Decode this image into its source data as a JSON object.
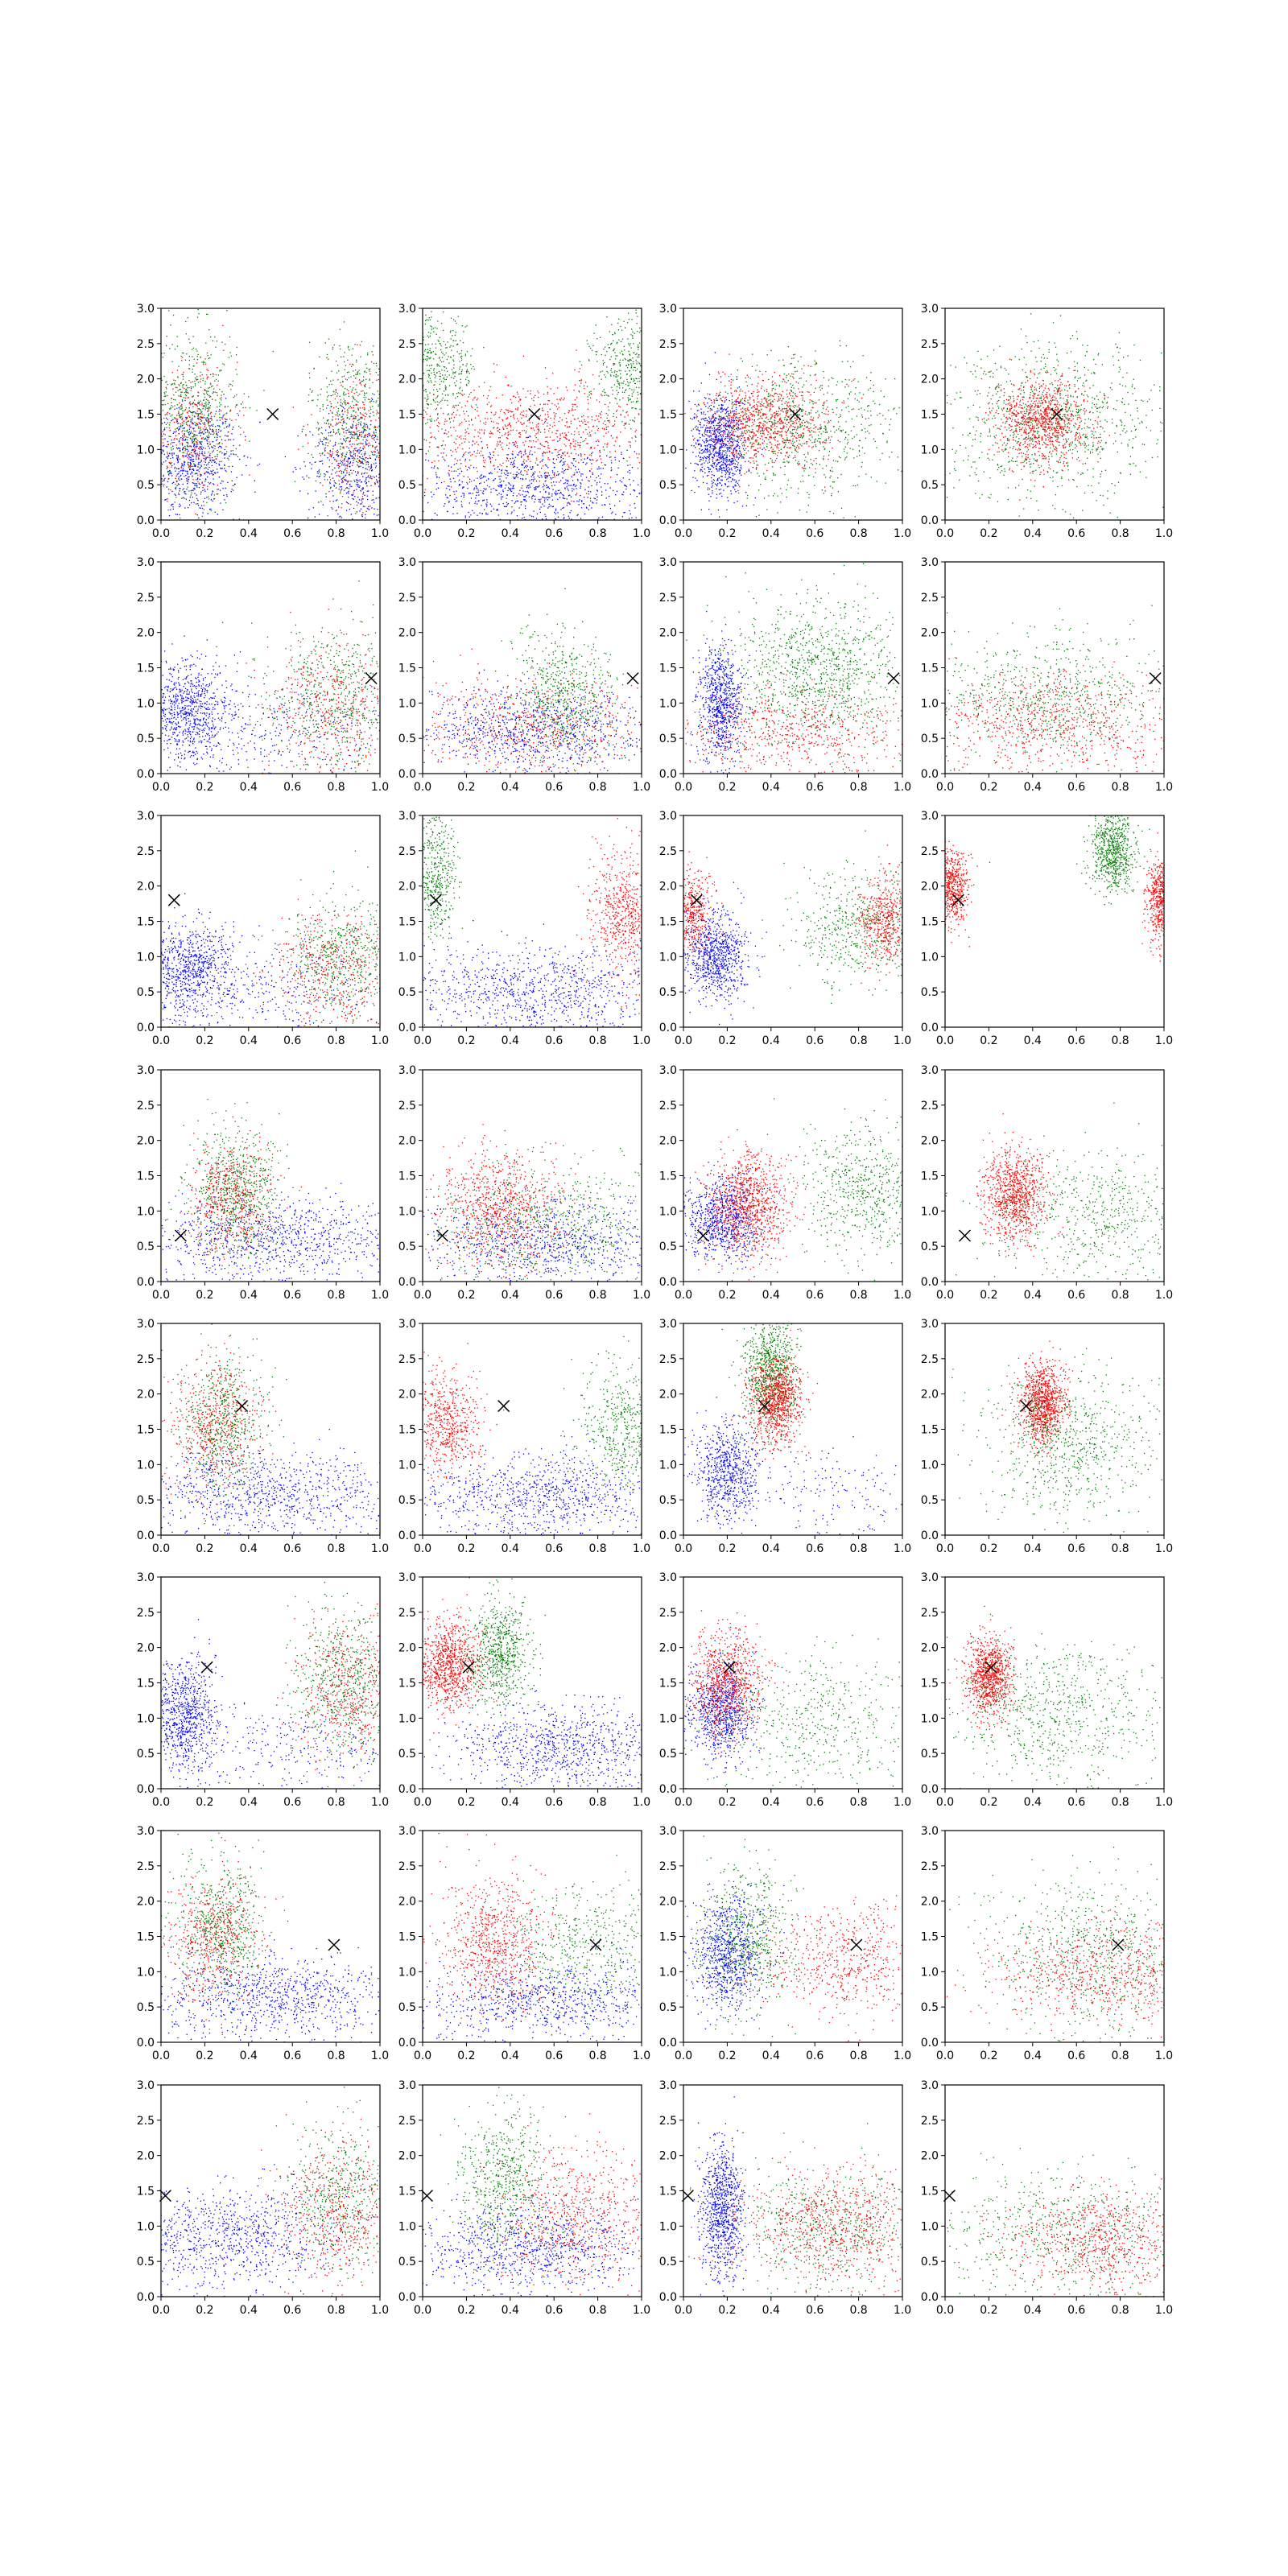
{
  "figure": {
    "rows": 8,
    "cols": 4,
    "colors": {
      "blue": "#0000ff",
      "red": "#ff0000",
      "green": "#008000",
      "marker": "#000000",
      "axes": "#000000"
    }
  },
  "chart_data": {
    "type": "scatter",
    "grid": false,
    "legend": "none",
    "xlim": [
      0,
      1
    ],
    "ylim": [
      0,
      3
    ],
    "x_ticks": [
      "0.0",
      "0.2",
      "0.4",
      "0.6",
      "0.8",
      "1.0"
    ],
    "y_ticks": [
      "0.0",
      "0.5",
      "1.0",
      "1.5",
      "2.0",
      "2.5",
      "3.0"
    ],
    "row_markers": [
      {
        "x": 0.51,
        "y": 1.5
      },
      {
        "x": 0.96,
        "y": 1.35
      },
      {
        "x": 0.06,
        "y": 1.8
      },
      {
        "x": 0.09,
        "y": 0.65
      },
      {
        "x": 0.37,
        "y": 1.83
      },
      {
        "x": 0.21,
        "y": 1.72
      },
      {
        "x": 0.79,
        "y": 1.38
      },
      {
        "x": 0.02,
        "y": 1.43
      }
    ],
    "panels": [
      {
        "clusters": [
          {
            "color": "blue",
            "n": 700,
            "cx": 0.15,
            "cy": 0.85,
            "sx": 0.1,
            "sy": 0.4
          },
          {
            "color": "blue",
            "n": 500,
            "cx": 0.88,
            "cy": 0.8,
            "sx": 0.1,
            "sy": 0.4
          },
          {
            "color": "green",
            "n": 550,
            "cx": 0.15,
            "cy": 1.6,
            "sx": 0.1,
            "sy": 0.55
          },
          {
            "color": "green",
            "n": 450,
            "cx": 0.88,
            "cy": 1.5,
            "sx": 0.1,
            "sy": 0.55
          },
          {
            "color": "red",
            "n": 350,
            "cx": 0.15,
            "cy": 1.3,
            "sx": 0.1,
            "sy": 0.5
          },
          {
            "color": "red",
            "n": 300,
            "cx": 0.88,
            "cy": 1.2,
            "sx": 0.1,
            "sy": 0.5
          }
        ]
      },
      {
        "clusters": [
          {
            "color": "green",
            "n": 500,
            "cx": 0.05,
            "cy": 2.1,
            "sx": 0.1,
            "sy": 0.4
          },
          {
            "color": "green",
            "n": 500,
            "cx": 0.97,
            "cy": 2.1,
            "sx": 0.1,
            "sy": 0.4
          },
          {
            "color": "red",
            "n": 900,
            "cx": 0.5,
            "cy": 1.25,
            "sx": 0.28,
            "sy": 0.35
          },
          {
            "color": "blue",
            "n": 900,
            "cx": 0.5,
            "cy": 0.5,
            "sx": 0.3,
            "sy": 0.3
          }
        ]
      },
      {
        "clusters": [
          {
            "color": "blue",
            "n": 900,
            "cx": 0.17,
            "cy": 1.05,
            "sx": 0.06,
            "sy": 0.35
          },
          {
            "color": "red",
            "n": 900,
            "cx": 0.38,
            "cy": 1.4,
            "sx": 0.14,
            "sy": 0.3
          },
          {
            "color": "green",
            "n": 700,
            "cx": 0.55,
            "cy": 1.3,
            "sx": 0.22,
            "sy": 0.5
          }
        ]
      },
      {
        "clusters": [
          {
            "color": "green",
            "n": 900,
            "cx": 0.5,
            "cy": 1.4,
            "sx": 0.25,
            "sy": 0.55
          },
          {
            "color": "red",
            "n": 900,
            "cx": 0.45,
            "cy": 1.4,
            "sx": 0.1,
            "sy": 0.3
          }
        ]
      },
      {
        "clusters": [
          {
            "color": "blue",
            "n": 800,
            "cx": 0.12,
            "cy": 0.9,
            "sx": 0.1,
            "sy": 0.35
          },
          {
            "color": "blue",
            "n": 300,
            "cx": 0.5,
            "cy": 0.6,
            "sx": 0.3,
            "sy": 0.3
          },
          {
            "color": "red",
            "n": 500,
            "cx": 0.78,
            "cy": 0.95,
            "sx": 0.15,
            "sy": 0.5
          },
          {
            "color": "green",
            "n": 500,
            "cx": 0.8,
            "cy": 1.1,
            "sx": 0.15,
            "sy": 0.5
          }
        ]
      },
      {
        "clusters": [
          {
            "color": "blue",
            "n": 900,
            "cx": 0.5,
            "cy": 0.6,
            "sx": 0.3,
            "sy": 0.3
          },
          {
            "color": "green",
            "n": 600,
            "cx": 0.65,
            "cy": 1.1,
            "sx": 0.12,
            "sy": 0.45
          },
          {
            "color": "red",
            "n": 600,
            "cx": 0.5,
            "cy": 0.7,
            "sx": 0.28,
            "sy": 0.35
          }
        ]
      },
      {
        "clusters": [
          {
            "color": "blue",
            "n": 800,
            "cx": 0.17,
            "cy": 1.0,
            "sx": 0.05,
            "sy": 0.4
          },
          {
            "color": "green",
            "n": 1000,
            "cx": 0.62,
            "cy": 1.45,
            "sx": 0.2,
            "sy": 0.5
          },
          {
            "color": "red",
            "n": 600,
            "cx": 0.5,
            "cy": 0.6,
            "sx": 0.28,
            "sy": 0.3
          }
        ]
      },
      {
        "clusters": [
          {
            "color": "green",
            "n": 700,
            "cx": 0.45,
            "cy": 1.1,
            "sx": 0.28,
            "sy": 0.45
          },
          {
            "color": "red",
            "n": 700,
            "cx": 0.5,
            "cy": 0.7,
            "sx": 0.28,
            "sy": 0.35
          }
        ]
      },
      {
        "clusters": [
          {
            "color": "blue",
            "n": 800,
            "cx": 0.12,
            "cy": 0.8,
            "sx": 0.1,
            "sy": 0.35
          },
          {
            "color": "blue",
            "n": 300,
            "cx": 0.5,
            "cy": 0.55,
            "sx": 0.3,
            "sy": 0.3
          },
          {
            "color": "green",
            "n": 500,
            "cx": 0.82,
            "cy": 1.0,
            "sx": 0.12,
            "sy": 0.4
          },
          {
            "color": "red",
            "n": 450,
            "cx": 0.78,
            "cy": 0.85,
            "sx": 0.14,
            "sy": 0.4
          }
        ]
      },
      {
        "clusters": [
          {
            "color": "green",
            "n": 450,
            "cx": 0.06,
            "cy": 2.2,
            "sx": 0.05,
            "sy": 0.45
          },
          {
            "color": "red",
            "n": 600,
            "cx": 0.92,
            "cy": 1.6,
            "sx": 0.08,
            "sy": 0.45
          },
          {
            "color": "blue",
            "n": 900,
            "cx": 0.5,
            "cy": 0.55,
            "sx": 0.3,
            "sy": 0.3
          }
        ]
      },
      {
        "clusters": [
          {
            "color": "red",
            "n": 500,
            "cx": 0.03,
            "cy": 1.6,
            "sx": 0.05,
            "sy": 0.3
          },
          {
            "color": "blue",
            "n": 800,
            "cx": 0.15,
            "cy": 1.0,
            "sx": 0.07,
            "sy": 0.3
          },
          {
            "color": "green",
            "n": 500,
            "cx": 0.8,
            "cy": 1.4,
            "sx": 0.15,
            "sy": 0.45
          },
          {
            "color": "red",
            "n": 500,
            "cx": 0.92,
            "cy": 1.5,
            "sx": 0.06,
            "sy": 0.3
          }
        ]
      },
      {
        "clusters": [
          {
            "color": "red",
            "n": 600,
            "cx": 0.03,
            "cy": 1.95,
            "sx": 0.04,
            "sy": 0.25
          },
          {
            "color": "green",
            "n": 700,
            "cx": 0.77,
            "cy": 2.5,
            "sx": 0.05,
            "sy": 0.3
          },
          {
            "color": "red",
            "n": 500,
            "cx": 0.98,
            "cy": 1.8,
            "sx": 0.03,
            "sy": 0.3
          }
        ]
      },
      {
        "clusters": [
          {
            "color": "blue",
            "n": 900,
            "cx": 0.5,
            "cy": 0.6,
            "sx": 0.32,
            "sy": 0.3
          },
          {
            "color": "green",
            "n": 700,
            "cx": 0.35,
            "cy": 1.3,
            "sx": 0.1,
            "sy": 0.45
          },
          {
            "color": "red",
            "n": 500,
            "cx": 0.32,
            "cy": 1.2,
            "sx": 0.1,
            "sy": 0.4
          }
        ]
      },
      {
        "clusters": [
          {
            "color": "blue",
            "n": 800,
            "cx": 0.55,
            "cy": 0.55,
            "sx": 0.3,
            "sy": 0.28
          },
          {
            "color": "red",
            "n": 800,
            "cx": 0.35,
            "cy": 1.05,
            "sx": 0.14,
            "sy": 0.4
          },
          {
            "color": "green",
            "n": 600,
            "cx": 0.6,
            "cy": 0.9,
            "sx": 0.28,
            "sy": 0.4
          }
        ]
      },
      {
        "clusters": [
          {
            "color": "blue",
            "n": 800,
            "cx": 0.18,
            "cy": 0.9,
            "sx": 0.09,
            "sy": 0.3
          },
          {
            "color": "red",
            "n": 900,
            "cx": 0.3,
            "cy": 1.1,
            "sx": 0.09,
            "sy": 0.35
          },
          {
            "color": "green",
            "n": 600,
            "cx": 0.82,
            "cy": 1.3,
            "sx": 0.15,
            "sy": 0.45
          }
        ]
      },
      {
        "clusters": [
          {
            "color": "red",
            "n": 900,
            "cx": 0.32,
            "cy": 1.2,
            "sx": 0.07,
            "sy": 0.3
          },
          {
            "color": "green",
            "n": 600,
            "cx": 0.7,
            "cy": 0.9,
            "sx": 0.25,
            "sy": 0.45
          }
        ]
      },
      {
        "clusters": [
          {
            "color": "blue",
            "n": 900,
            "cx": 0.5,
            "cy": 0.6,
            "sx": 0.32,
            "sy": 0.3
          },
          {
            "color": "green",
            "n": 600,
            "cx": 0.28,
            "cy": 1.6,
            "sx": 0.1,
            "sy": 0.5
          },
          {
            "color": "red",
            "n": 500,
            "cx": 0.25,
            "cy": 1.5,
            "sx": 0.1,
            "sy": 0.45
          }
        ]
      },
      {
        "clusters": [
          {
            "color": "blue",
            "n": 900,
            "cx": 0.55,
            "cy": 0.55,
            "sx": 0.3,
            "sy": 0.3
          },
          {
            "color": "red",
            "n": 600,
            "cx": 0.1,
            "cy": 1.6,
            "sx": 0.08,
            "sy": 0.35
          },
          {
            "color": "green",
            "n": 500,
            "cx": 0.92,
            "cy": 1.5,
            "sx": 0.1,
            "sy": 0.45
          }
        ]
      },
      {
        "clusters": [
          {
            "color": "blue",
            "n": 700,
            "cx": 0.2,
            "cy": 0.9,
            "sx": 0.07,
            "sy": 0.35
          },
          {
            "color": "green",
            "n": 800,
            "cx": 0.4,
            "cy": 2.3,
            "sx": 0.06,
            "sy": 0.4
          },
          {
            "color": "red",
            "n": 900,
            "cx": 0.42,
            "cy": 1.9,
            "sx": 0.06,
            "sy": 0.3
          },
          {
            "color": "blue",
            "n": 200,
            "cx": 0.7,
            "cy": 0.6,
            "sx": 0.25,
            "sy": 0.3
          }
        ]
      },
      {
        "clusters": [
          {
            "color": "red",
            "n": 1000,
            "cx": 0.45,
            "cy": 1.85,
            "sx": 0.05,
            "sy": 0.28
          },
          {
            "color": "green",
            "n": 700,
            "cx": 0.55,
            "cy": 1.3,
            "sx": 0.2,
            "sy": 0.5
          }
        ]
      },
      {
        "clusters": [
          {
            "color": "blue",
            "n": 800,
            "cx": 0.1,
            "cy": 1.05,
            "sx": 0.08,
            "sy": 0.4
          },
          {
            "color": "blue",
            "n": 300,
            "cx": 0.5,
            "cy": 0.6,
            "sx": 0.3,
            "sy": 0.3
          },
          {
            "color": "green",
            "n": 600,
            "cx": 0.85,
            "cy": 1.5,
            "sx": 0.12,
            "sy": 0.5
          },
          {
            "color": "red",
            "n": 500,
            "cx": 0.85,
            "cy": 1.4,
            "sx": 0.12,
            "sy": 0.5
          }
        ]
      },
      {
        "clusters": [
          {
            "color": "red",
            "n": 900,
            "cx": 0.12,
            "cy": 1.75,
            "sx": 0.07,
            "sy": 0.3
          },
          {
            "color": "green",
            "n": 700,
            "cx": 0.35,
            "cy": 1.9,
            "sx": 0.07,
            "sy": 0.4
          },
          {
            "color": "blue",
            "n": 900,
            "cx": 0.65,
            "cy": 0.6,
            "sx": 0.25,
            "sy": 0.3
          }
        ]
      },
      {
        "clusters": [
          {
            "color": "blue",
            "n": 800,
            "cx": 0.17,
            "cy": 1.1,
            "sx": 0.07,
            "sy": 0.35
          },
          {
            "color": "red",
            "n": 800,
            "cx": 0.2,
            "cy": 1.5,
            "sx": 0.08,
            "sy": 0.35
          },
          {
            "color": "green",
            "n": 500,
            "cx": 0.6,
            "cy": 1.0,
            "sx": 0.25,
            "sy": 0.5
          }
        ]
      },
      {
        "clusters": [
          {
            "color": "red",
            "n": 900,
            "cx": 0.2,
            "cy": 1.6,
            "sx": 0.05,
            "sy": 0.28
          },
          {
            "color": "green",
            "n": 700,
            "cx": 0.5,
            "cy": 1.1,
            "sx": 0.25,
            "sy": 0.5
          }
        ]
      },
      {
        "clusters": [
          {
            "color": "blue",
            "n": 900,
            "cx": 0.5,
            "cy": 0.65,
            "sx": 0.3,
            "sy": 0.3
          },
          {
            "color": "green",
            "n": 600,
            "cx": 0.28,
            "cy": 1.6,
            "sx": 0.1,
            "sy": 0.5
          },
          {
            "color": "red",
            "n": 500,
            "cx": 0.25,
            "cy": 1.5,
            "sx": 0.1,
            "sy": 0.45
          }
        ]
      },
      {
        "clusters": [
          {
            "color": "blue",
            "n": 800,
            "cx": 0.55,
            "cy": 0.6,
            "sx": 0.3,
            "sy": 0.28
          },
          {
            "color": "red",
            "n": 700,
            "cx": 0.32,
            "cy": 1.4,
            "sx": 0.12,
            "sy": 0.45
          },
          {
            "color": "green",
            "n": 500,
            "cx": 0.75,
            "cy": 1.4,
            "sx": 0.2,
            "sy": 0.45
          }
        ]
      },
      {
        "clusters": [
          {
            "color": "blue",
            "n": 800,
            "cx": 0.2,
            "cy": 1.25,
            "sx": 0.08,
            "sy": 0.4
          },
          {
            "color": "green",
            "n": 600,
            "cx": 0.3,
            "cy": 1.5,
            "sx": 0.1,
            "sy": 0.5
          },
          {
            "color": "red",
            "n": 600,
            "cx": 0.75,
            "cy": 1.15,
            "sx": 0.2,
            "sy": 0.4
          }
        ]
      },
      {
        "clusters": [
          {
            "color": "green",
            "n": 700,
            "cx": 0.7,
            "cy": 1.3,
            "sx": 0.25,
            "sy": 0.55
          },
          {
            "color": "red",
            "n": 700,
            "cx": 0.7,
            "cy": 0.95,
            "sx": 0.25,
            "sy": 0.35
          }
        ]
      },
      {
        "clusters": [
          {
            "color": "blue",
            "n": 900,
            "cx": 0.3,
            "cy": 0.85,
            "sx": 0.25,
            "sy": 0.35
          },
          {
            "color": "green",
            "n": 500,
            "cx": 0.82,
            "cy": 1.4,
            "sx": 0.12,
            "sy": 0.5
          },
          {
            "color": "red",
            "n": 500,
            "cx": 0.8,
            "cy": 1.2,
            "sx": 0.14,
            "sy": 0.5
          }
        ]
      },
      {
        "clusters": [
          {
            "color": "blue",
            "n": 900,
            "cx": 0.45,
            "cy": 0.7,
            "sx": 0.28,
            "sy": 0.3
          },
          {
            "color": "green",
            "n": 600,
            "cx": 0.38,
            "cy": 1.6,
            "sx": 0.1,
            "sy": 0.55
          },
          {
            "color": "red",
            "n": 700,
            "cx": 0.75,
            "cy": 1.2,
            "sx": 0.2,
            "sy": 0.5
          }
        ]
      },
      {
        "clusters": [
          {
            "color": "blue",
            "n": 900,
            "cx": 0.18,
            "cy": 1.2,
            "sx": 0.05,
            "sy": 0.45
          },
          {
            "color": "red",
            "n": 800,
            "cx": 0.7,
            "cy": 1.0,
            "sx": 0.22,
            "sy": 0.4
          },
          {
            "color": "green",
            "n": 500,
            "cx": 0.65,
            "cy": 1.0,
            "sx": 0.22,
            "sy": 0.45
          }
        ]
      },
      {
        "clusters": [
          {
            "color": "green",
            "n": 600,
            "cx": 0.55,
            "cy": 0.9,
            "sx": 0.3,
            "sy": 0.45
          },
          {
            "color": "red",
            "n": 700,
            "cx": 0.7,
            "cy": 0.8,
            "sx": 0.22,
            "sy": 0.35
          }
        ]
      }
    ]
  }
}
